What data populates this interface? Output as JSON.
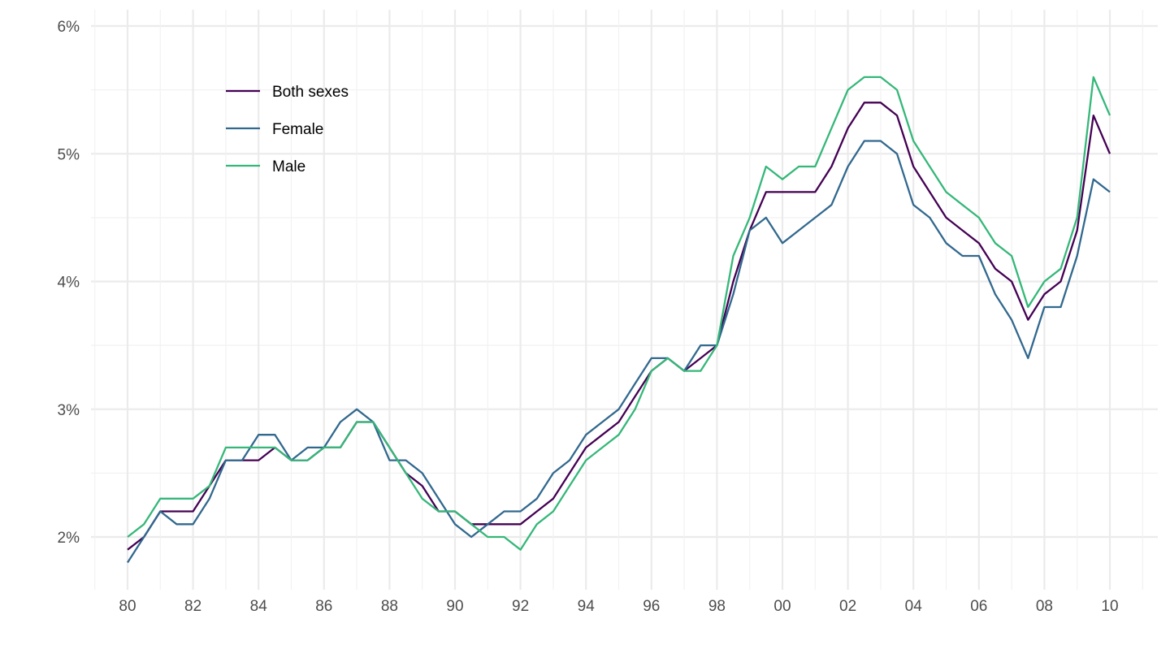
{
  "chart_data": {
    "type": "line",
    "title": "",
    "xlabel": "",
    "ylabel": "",
    "xlim": [
      1979,
      2011
    ],
    "ylim": [
      1.6,
      6.1
    ],
    "grid": true,
    "legend_position": "top-left",
    "x_ticks": [
      1980,
      1982,
      1984,
      1986,
      1988,
      1990,
      1992,
      1994,
      1996,
      1998,
      2000,
      2002,
      2004,
      2006,
      2008,
      2010
    ],
    "x_tick_labels": [
      "80",
      "82",
      "84",
      "86",
      "88",
      "90",
      "92",
      "94",
      "96",
      "98",
      "00",
      "02",
      "04",
      "06",
      "08",
      "10"
    ],
    "y_ticks": [
      2,
      3,
      4,
      5,
      6
    ],
    "y_tick_labels": [
      "2%",
      "3%",
      "4%",
      "5%",
      "6%"
    ],
    "x": [
      1980,
      1980.5,
      1981,
      1981.5,
      1982,
      1982.5,
      1983,
      1983.5,
      1984,
      1984.5,
      1985,
      1985.5,
      1986,
      1986.5,
      1987,
      1987.5,
      1988,
      1988.5,
      1989,
      1989.5,
      1990,
      1990.5,
      1991,
      1991.5,
      1992,
      1992.5,
      1993,
      1993.5,
      1994,
      1994.5,
      1995,
      1995.5,
      1996,
      1996.5,
      1997,
      1997.5,
      1998,
      1998.5,
      1999,
      1999.5,
      2000,
      2000.5,
      2001,
      2001.5,
      2002,
      2002.5,
      2003,
      2003.5,
      2004,
      2004.5,
      2005,
      2005.5,
      2006,
      2006.5,
      2007,
      2007.5,
      2008,
      2008.5,
      2009,
      2009.5,
      2010
    ],
    "series": [
      {
        "name": "Both sexes",
        "color": "#440154",
        "values": [
          1.9,
          2.0,
          2.2,
          2.2,
          2.2,
          2.4,
          2.6,
          2.6,
          2.6,
          2.7,
          2.6,
          2.6,
          2.7,
          2.7,
          2.9,
          2.9,
          2.7,
          2.5,
          2.4,
          2.2,
          2.2,
          2.1,
          2.1,
          2.1,
          2.1,
          2.2,
          2.3,
          2.5,
          2.7,
          2.8,
          2.9,
          3.1,
          3.3,
          3.4,
          3.3,
          3.4,
          3.5,
          4.0,
          4.4,
          4.7,
          4.7,
          4.7,
          4.7,
          4.9,
          5.2,
          5.4,
          5.4,
          5.3,
          4.9,
          4.7,
          4.5,
          4.4,
          4.3,
          4.1,
          4.0,
          3.7,
          3.9,
          4.0,
          4.4,
          5.3,
          5.0
        ]
      },
      {
        "name": "Female",
        "color": "#31688E",
        "values": [
          1.8,
          2.0,
          2.2,
          2.1,
          2.1,
          2.3,
          2.6,
          2.6,
          2.8,
          2.8,
          2.6,
          2.7,
          2.7,
          2.9,
          3.0,
          2.9,
          2.6,
          2.6,
          2.5,
          2.3,
          2.1,
          2.0,
          2.1,
          2.2,
          2.2,
          2.3,
          2.5,
          2.6,
          2.8,
          2.9,
          3.0,
          3.2,
          3.4,
          3.4,
          3.3,
          3.5,
          3.5,
          3.9,
          4.4,
          4.5,
          4.3,
          4.4,
          4.5,
          4.6,
          4.9,
          5.1,
          5.1,
          5.0,
          4.6,
          4.5,
          4.3,
          4.2,
          4.2,
          3.9,
          3.7,
          3.4,
          3.8,
          3.8,
          4.2,
          4.8,
          4.7
        ]
      },
      {
        "name": "Male",
        "color": "#35B779",
        "values": [
          2.0,
          2.1,
          2.3,
          2.3,
          2.3,
          2.4,
          2.7,
          2.7,
          2.7,
          2.7,
          2.6,
          2.6,
          2.7,
          2.7,
          2.9,
          2.9,
          2.7,
          2.5,
          2.3,
          2.2,
          2.2,
          2.1,
          2.0,
          2.0,
          1.9,
          2.1,
          2.2,
          2.4,
          2.6,
          2.7,
          2.8,
          3.0,
          3.3,
          3.4,
          3.3,
          3.3,
          3.5,
          4.2,
          4.5,
          4.9,
          4.8,
          4.9,
          4.9,
          5.2,
          5.5,
          5.6,
          5.6,
          5.5,
          5.1,
          4.9,
          4.7,
          4.6,
          4.5,
          4.3,
          4.2,
          3.8,
          4.0,
          4.1,
          4.5,
          5.6,
          5.3
        ]
      }
    ]
  }
}
